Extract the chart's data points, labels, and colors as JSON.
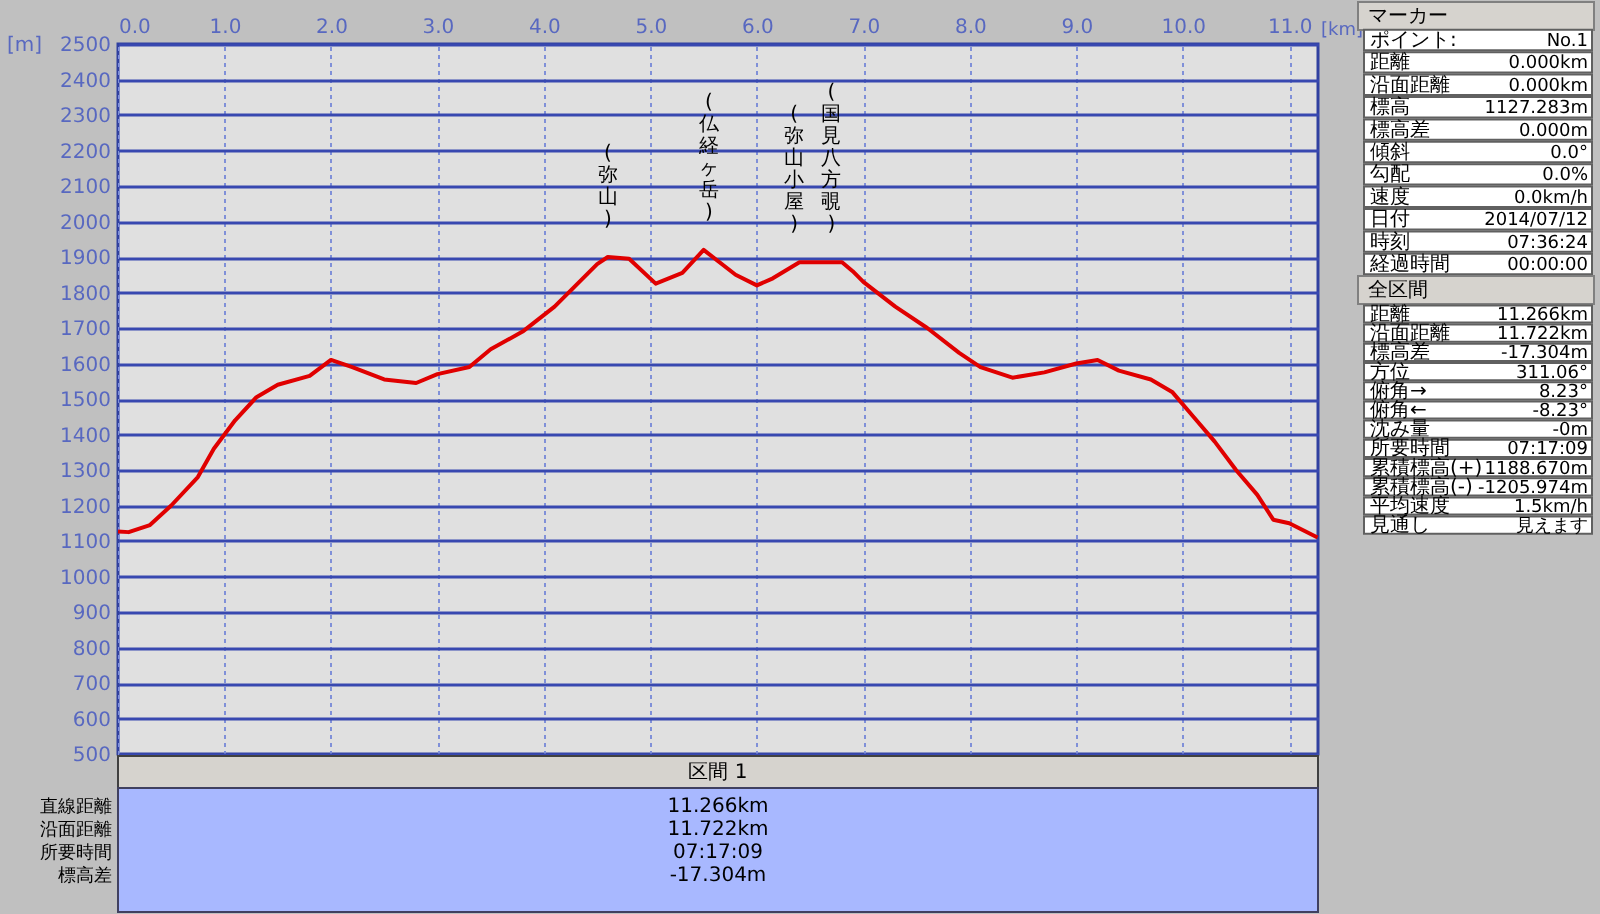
{
  "chart_data": {
    "type": "line",
    "xlabel": "[km]",
    "ylabel": "[m]",
    "x": [
      0,
      0.1,
      0.3,
      0.5,
      0.75,
      0.9,
      1.0,
      1.1,
      1.3,
      1.5,
      1.8,
      2.0,
      2.2,
      2.5,
      2.8,
      3.0,
      3.3,
      3.5,
      3.8,
      4.1,
      4.3,
      4.5,
      4.6,
      4.8,
      5.05,
      5.3,
      5.5,
      5.8,
      6.0,
      6.15,
      6.4,
      6.8,
      6.9,
      7.0,
      7.3,
      7.6,
      7.9,
      8.1,
      8.4,
      8.7,
      9.0,
      9.2,
      9.4,
      9.7,
      9.9,
      10.1,
      10.3,
      10.5,
      10.7,
      10.85,
      11.0,
      11.266
    ],
    "series": [
      {
        "color": "#e00000",
        "values": [
          1127,
          1125,
          1145,
          1200,
          1280,
          1360,
          1400,
          1440,
          1505,
          1540,
          1565,
          1610,
          1590,
          1555,
          1545,
          1570,
          1590,
          1640,
          1690,
          1760,
          1820,
          1880,
          1900,
          1895,
          1825,
          1855,
          1920,
          1850,
          1820,
          1840,
          1885,
          1885,
          1860,
          1830,
          1760,
          1700,
          1630,
          1590,
          1560,
          1575,
          1600,
          1610,
          1580,
          1555,
          1520,
          1450,
          1380,
          1300,
          1230,
          1160,
          1150,
          1110
        ]
      }
    ],
    "xlim": [
      0,
      11.27
    ],
    "ylim": [
      500,
      2500
    ],
    "xticks": [
      {
        "value": 0,
        "label": "0.0"
      },
      {
        "value": 1,
        "label": "1.0"
      },
      {
        "value": 2,
        "label": "2.0"
      },
      {
        "value": 3,
        "label": "3.0"
      },
      {
        "value": 4,
        "label": "4.0"
      },
      {
        "value": 5,
        "label": "5.0"
      },
      {
        "value": 6,
        "label": "6.0"
      },
      {
        "value": 7,
        "label": "7.0"
      },
      {
        "value": 8,
        "label": "8.0"
      },
      {
        "value": 9,
        "label": "9.0"
      },
      {
        "value": 10,
        "label": "10.0"
      },
      {
        "value": 11,
        "label": "11.0"
      }
    ],
    "yticks": [
      500,
      600,
      700,
      800,
      900,
      1000,
      1100,
      1200,
      1300,
      1400,
      1500,
      1600,
      1700,
      1800,
      1900,
      2000,
      2100,
      2200,
      2300,
      2400,
      2500
    ],
    "grid": true,
    "annotations": [
      {
        "text": "(弥山)",
        "x": 4.6,
        "y": 1900
      },
      {
        "text": "(仏経ヶ岳)",
        "x": 5.55,
        "y": 1920
      },
      {
        "text": "(弥山小屋)",
        "x": 6.35,
        "y": 1885
      },
      {
        "text": "(国見八方覗)",
        "x": 6.7,
        "y": 1885
      },
      "マーカー",
      "ポイント:",
      "No.1",
      "距離",
      "0.000km",
      "沿面距離",
      "0.000km",
      "標高",
      "1127.283m",
      "標高差",
      "0.000m",
      "傾斜",
      "0.0°",
      "勾配",
      "0.0%",
      "速度",
      "0.0km/h",
      "日付",
      "2014/07/12",
      "時刻",
      "07:36:24",
      "経過時間",
      "00:00:00",
      "全区間",
      "距離",
      "11.266km",
      "沿面距離",
      "11.722km",
      "標高差",
      "-17.304m",
      "方位",
      "311.06°",
      "俯角→",
      "8.23°",
      "俯角←",
      "-8.23°",
      "沈み量",
      "-0m",
      "所要時間",
      "07:17:09",
      "累積標高(+)",
      "1188.670m",
      "累積標高(-)",
      "-1205.974m",
      "平均速度",
      "1.5km/h",
      "見通し",
      "見えます",
      "区間 1",
      "直線距離",
      "11.266km",
      "沿面距離",
      "11.722km",
      "所要時間",
      "07:17:09",
      "標高差",
      "-17.304m"
    ]
  }
}
